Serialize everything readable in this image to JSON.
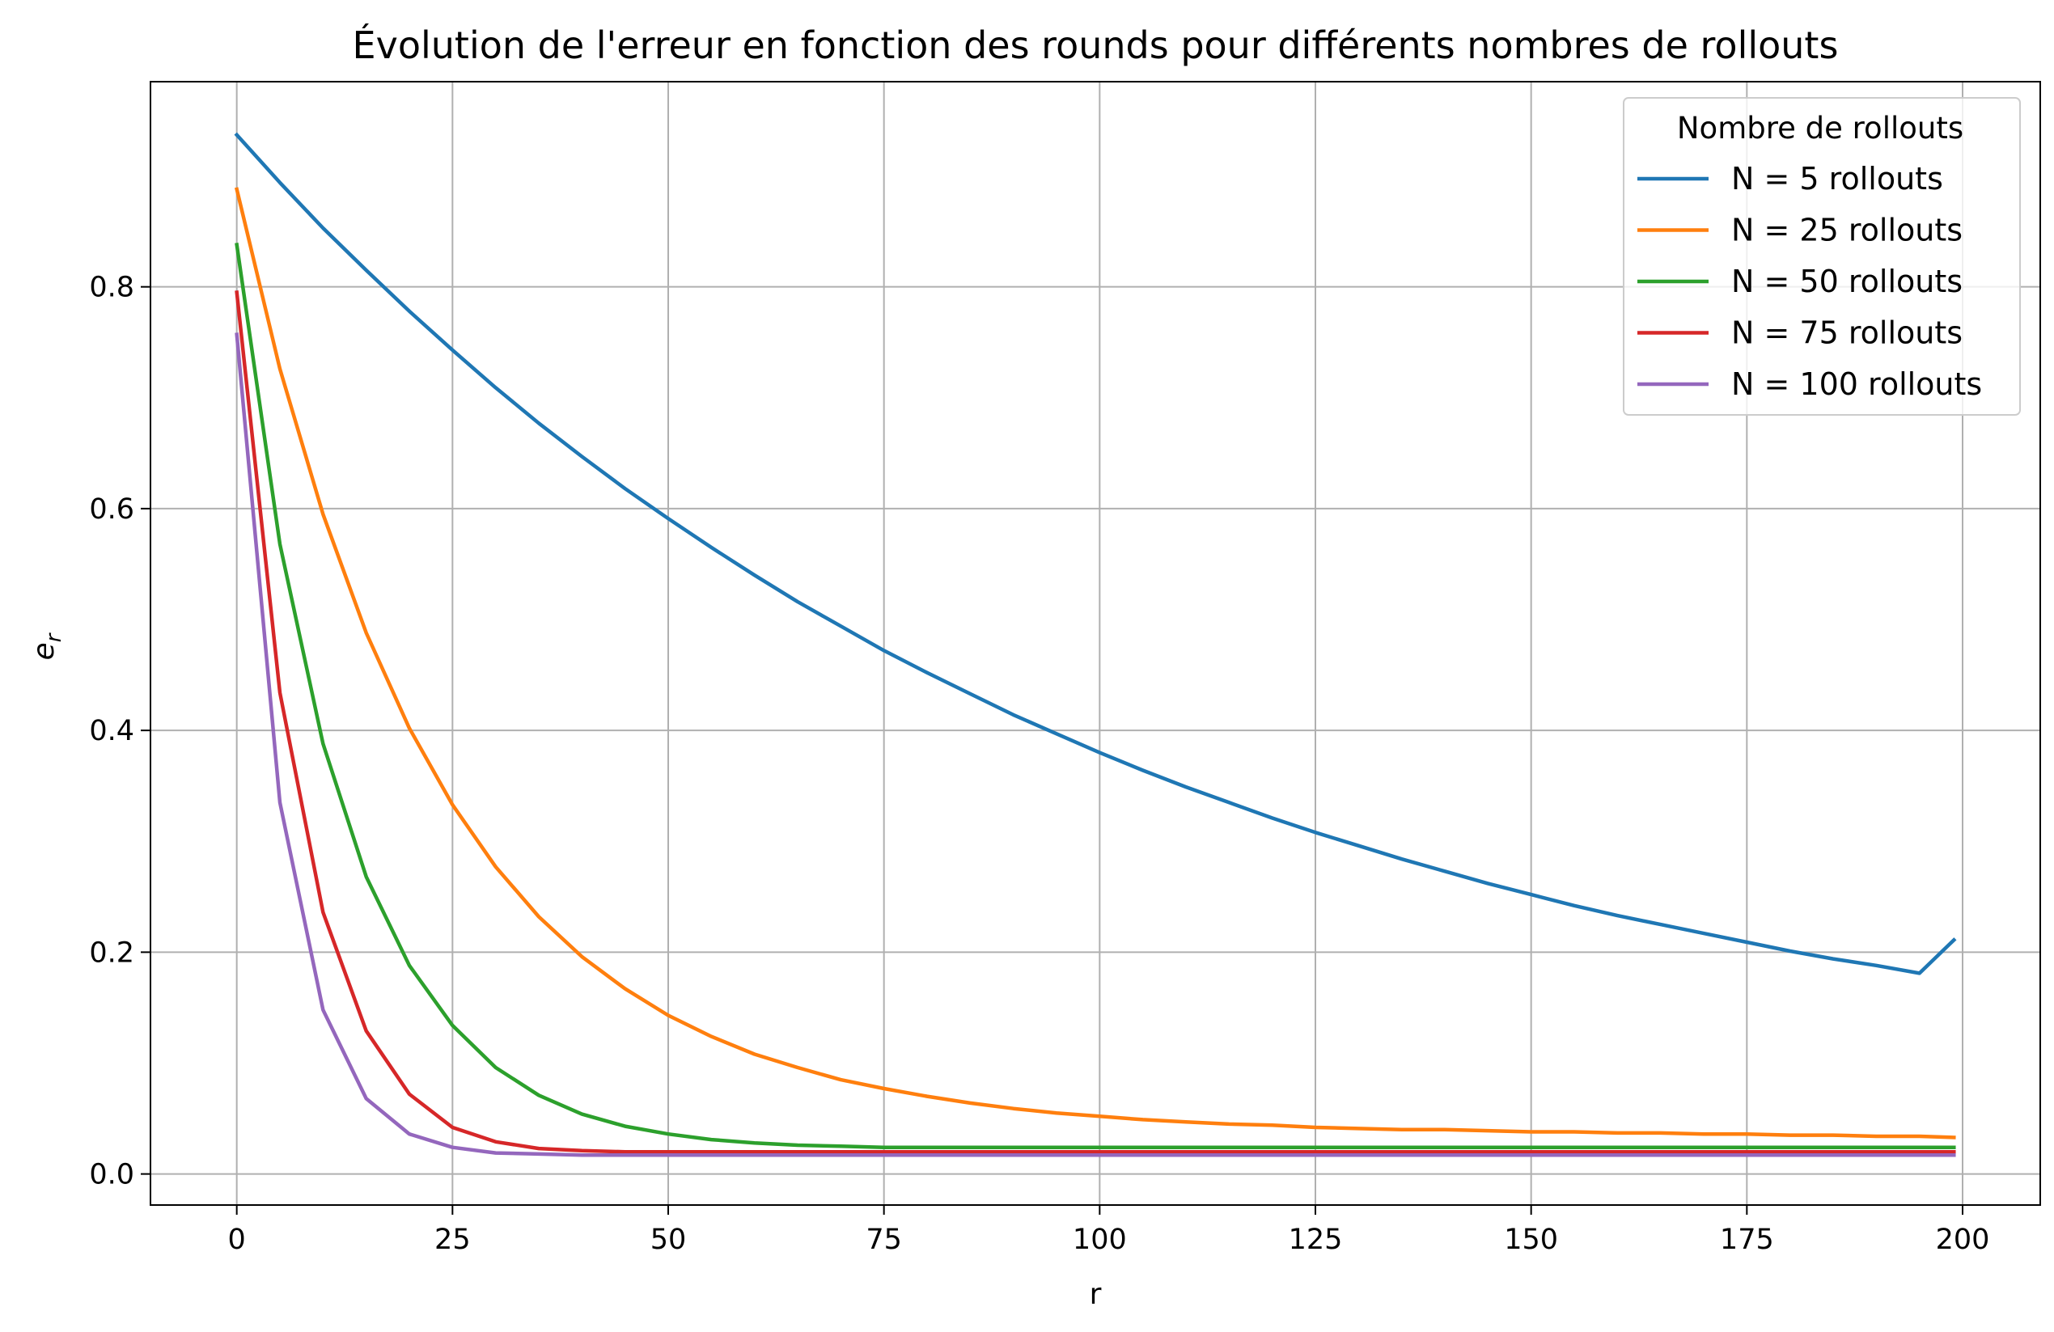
{
  "chart_data": {
    "type": "line",
    "title": "Évolution de l'erreur en fonction des rounds pour différents nombres de rollouts",
    "xlabel": "r",
    "ylabel_main": "e",
    "ylabel_sub": "r",
    "xlim": [
      -10,
      209
    ],
    "ylim": [
      -0.028,
      0.985
    ],
    "xticks": [
      0,
      25,
      50,
      75,
      100,
      125,
      150,
      175,
      200
    ],
    "yticks": [
      0.0,
      0.2,
      0.4,
      0.6,
      0.8
    ],
    "xtick_labels": [
      "0",
      "25",
      "50",
      "75",
      "100",
      "125",
      "150",
      "175",
      "200"
    ],
    "ytick_labels": [
      "0.0",
      "0.2",
      "0.4",
      "0.6",
      "0.8"
    ],
    "grid": true,
    "legend_title": "Nombre de rollouts",
    "legend_position": "top-right",
    "x": [
      0,
      5,
      10,
      15,
      20,
      25,
      30,
      35,
      40,
      45,
      50,
      55,
      60,
      65,
      70,
      75,
      80,
      85,
      90,
      95,
      100,
      105,
      110,
      115,
      120,
      125,
      130,
      135,
      140,
      145,
      150,
      155,
      160,
      165,
      170,
      175,
      180,
      185,
      190,
      195,
      199
    ],
    "series": [
      {
        "name": "N = 5 rollouts",
        "color": "#1f77b4",
        "values": [
          0.937,
          0.894,
          0.853,
          0.815,
          0.778,
          0.743,
          0.709,
          0.677,
          0.647,
          0.618,
          0.591,
          0.565,
          0.54,
          0.516,
          0.494,
          0.472,
          0.452,
          0.433,
          0.414,
          0.397,
          0.38,
          0.364,
          0.349,
          0.335,
          0.321,
          0.308,
          0.296,
          0.284,
          0.273,
          0.262,
          0.252,
          0.242,
          0.233,
          0.225,
          0.217,
          0.209,
          0.201,
          0.194,
          0.188,
          0.181,
          0.211
        ]
      },
      {
        "name": "N = 25 rollouts",
        "color": "#ff7f0e",
        "values": [
          0.888,
          0.726,
          0.595,
          0.488,
          0.402,
          0.333,
          0.277,
          0.232,
          0.196,
          0.167,
          0.143,
          0.124,
          0.108,
          0.096,
          0.085,
          0.077,
          0.07,
          0.064,
          0.059,
          0.055,
          0.052,
          0.049,
          0.047,
          0.045,
          0.044,
          0.042,
          0.041,
          0.04,
          0.04,
          0.039,
          0.038,
          0.038,
          0.037,
          0.037,
          0.036,
          0.036,
          0.035,
          0.035,
          0.034,
          0.034,
          0.033
        ]
      },
      {
        "name": "N = 50 rollouts",
        "color": "#2ca02c",
        "values": [
          0.838,
          0.568,
          0.388,
          0.268,
          0.188,
          0.134,
          0.096,
          0.071,
          0.054,
          0.043,
          0.036,
          0.031,
          0.028,
          0.026,
          0.025,
          0.024,
          0.024,
          0.024,
          0.024,
          0.024,
          0.024,
          0.024,
          0.024,
          0.024,
          0.024,
          0.024,
          0.024,
          0.024,
          0.024,
          0.024,
          0.024,
          0.024,
          0.024,
          0.024,
          0.024,
          0.024,
          0.024,
          0.024,
          0.024,
          0.024,
          0.024
        ]
      },
      {
        "name": "N = 75 rollouts",
        "color": "#d62728",
        "values": [
          0.795,
          0.434,
          0.236,
          0.129,
          0.072,
          0.042,
          0.029,
          0.023,
          0.021,
          0.02,
          0.02,
          0.02,
          0.02,
          0.02,
          0.02,
          0.02,
          0.02,
          0.02,
          0.02,
          0.02,
          0.02,
          0.02,
          0.02,
          0.02,
          0.02,
          0.02,
          0.02,
          0.02,
          0.02,
          0.02,
          0.02,
          0.02,
          0.02,
          0.02,
          0.02,
          0.02,
          0.02,
          0.02,
          0.02,
          0.02,
          0.02
        ]
      },
      {
        "name": "N = 100 rollouts",
        "color": "#9467bd",
        "values": [
          0.757,
          0.335,
          0.148,
          0.068,
          0.036,
          0.024,
          0.019,
          0.018,
          0.017,
          0.017,
          0.017,
          0.017,
          0.017,
          0.017,
          0.017,
          0.017,
          0.017,
          0.017,
          0.017,
          0.017,
          0.017,
          0.017,
          0.017,
          0.017,
          0.017,
          0.017,
          0.017,
          0.017,
          0.017,
          0.017,
          0.017,
          0.017,
          0.017,
          0.017,
          0.017,
          0.017,
          0.017,
          0.017,
          0.017,
          0.017,
          0.017
        ]
      }
    ]
  }
}
